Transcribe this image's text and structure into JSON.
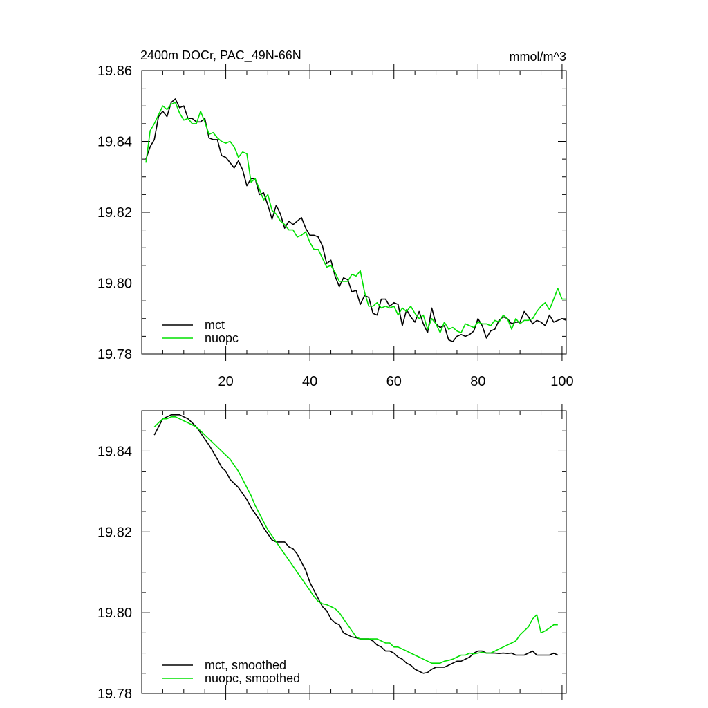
{
  "chart_data": [
    {
      "type": "line",
      "title": "2400m DOCr, PAC_49N-66N",
      "units": "mmol/m^3",
      "xlabel": "",
      "ylabel": "",
      "xlim": [
        0,
        101
      ],
      "ylim": [
        19.78,
        19.86
      ],
      "x_ticks": [
        20,
        40,
        60,
        80,
        100
      ],
      "y_ticks": [
        19.78,
        19.8,
        19.82,
        19.84,
        19.86
      ],
      "x_tick_labels": [
        "20",
        "40",
        "60",
        "80",
        "100"
      ],
      "y_tick_labels": [
        "19.78",
        "19.80",
        "19.82",
        "19.84",
        "19.86"
      ],
      "legend_position": "bottom-left",
      "series": [
        {
          "name": "mct",
          "color": "#000000",
          "x": [
            1,
            2,
            3,
            4,
            5,
            6,
            7,
            8,
            9,
            10,
            11,
            12,
            13,
            14,
            15,
            16,
            17,
            18,
            19,
            20,
            21,
            22,
            23,
            24,
            25,
            26,
            27,
            28,
            29,
            30,
            31,
            32,
            33,
            34,
            35,
            36,
            37,
            38,
            39,
            40,
            41,
            42,
            43,
            44,
            45,
            46,
            47,
            48,
            49,
            50,
            51,
            52,
            53,
            54,
            55,
            56,
            57,
            58,
            59,
            60,
            61,
            62,
            63,
            64,
            65,
            66,
            67,
            68,
            69,
            70,
            71,
            72,
            73,
            74,
            75,
            76,
            77,
            78,
            79,
            80,
            81,
            82,
            83,
            84,
            85,
            86,
            87,
            88,
            89,
            90,
            91,
            92,
            93,
            94,
            95,
            96,
            97,
            98,
            99,
            100,
            101
          ],
          "values": [
            19.835,
            19.8385,
            19.8405,
            19.847,
            19.8485,
            19.847,
            19.851,
            19.852,
            19.8495,
            19.85,
            19.8465,
            19.8465,
            19.8455,
            19.8455,
            19.8465,
            19.841,
            19.8405,
            19.8405,
            19.836,
            19.8355,
            19.834,
            19.8325,
            19.8345,
            19.832,
            19.8275,
            19.8295,
            19.8295,
            19.825,
            19.8255,
            19.822,
            19.818,
            19.822,
            19.8195,
            19.8155,
            19.8175,
            19.8165,
            19.8175,
            19.8185,
            19.8155,
            19.8135,
            19.8135,
            19.813,
            19.8105,
            19.8055,
            19.8065,
            19.802,
            19.799,
            19.8015,
            19.801,
            19.7975,
            19.798,
            19.794,
            19.7965,
            19.796,
            19.7915,
            19.791,
            19.7955,
            19.7955,
            19.7935,
            19.7945,
            19.794,
            19.788,
            19.7925,
            19.7905,
            19.789,
            19.792,
            19.7885,
            19.786,
            19.793,
            19.7885,
            19.7875,
            19.788,
            19.784,
            19.7835,
            19.785,
            19.7855,
            19.785,
            19.7855,
            19.7865,
            19.79,
            19.788,
            19.7845,
            19.7865,
            19.787,
            19.7895,
            19.7905,
            19.79,
            19.7885,
            19.789,
            19.789,
            19.792,
            19.7905,
            19.7885,
            19.7895,
            19.789,
            19.788,
            19.791,
            19.789,
            19.7895,
            19.79,
            19.7895
          ]
        },
        {
          "name": "nuopc",
          "color": "#00e000",
          "x": [
            1,
            2,
            3,
            4,
            5,
            6,
            7,
            8,
            9,
            10,
            11,
            12,
            13,
            14,
            15,
            16,
            17,
            18,
            19,
            20,
            21,
            22,
            23,
            24,
            25,
            26,
            27,
            28,
            29,
            30,
            31,
            32,
            33,
            34,
            35,
            36,
            37,
            38,
            39,
            40,
            41,
            42,
            43,
            44,
            45,
            46,
            47,
            48,
            49,
            50,
            51,
            52,
            53,
            54,
            55,
            56,
            57,
            58,
            59,
            60,
            61,
            62,
            63,
            64,
            65,
            66,
            67,
            68,
            69,
            70,
            71,
            72,
            73,
            74,
            75,
            76,
            77,
            78,
            79,
            80,
            81,
            82,
            83,
            84,
            85,
            86,
            87,
            88,
            89,
            90,
            91,
            92,
            93,
            94,
            95,
            96,
            97,
            98,
            99,
            100,
            101
          ],
          "values": [
            19.834,
            19.843,
            19.845,
            19.8475,
            19.85,
            19.849,
            19.8505,
            19.851,
            19.848,
            19.846,
            19.8465,
            19.845,
            19.845,
            19.8485,
            19.8455,
            19.842,
            19.8425,
            19.841,
            19.84,
            19.8395,
            19.84,
            19.8385,
            19.8355,
            19.837,
            19.8365,
            19.8285,
            19.8295,
            19.8265,
            19.8235,
            19.825,
            19.8205,
            19.8195,
            19.8175,
            19.8165,
            19.815,
            19.815,
            19.813,
            19.8135,
            19.8145,
            19.8115,
            19.8095,
            19.8095,
            19.807,
            19.8045,
            19.805,
            19.803,
            19.8005,
            19.8005,
            19.8005,
            19.8025,
            19.802,
            19.8035,
            19.7975,
            19.7935,
            19.7935,
            19.7945,
            19.793,
            19.7935,
            19.793,
            19.7935,
            19.791,
            19.793,
            19.792,
            19.7935,
            19.7915,
            19.79,
            19.791,
            19.787,
            19.79,
            19.7885,
            19.786,
            19.789,
            19.787,
            19.7875,
            19.7865,
            19.786,
            19.7885,
            19.788,
            19.7875,
            19.789,
            19.7885,
            19.7885,
            19.788,
            19.7895,
            19.789,
            19.791,
            19.79,
            19.787,
            19.79,
            19.7885,
            19.7895,
            19.7895,
            19.79,
            19.792,
            19.7935,
            19.7945,
            19.7925,
            19.7955,
            19.7985,
            19.7955,
            19.7955
          ]
        }
      ]
    },
    {
      "type": "line",
      "title": "",
      "xlabel": "",
      "ylabel": "",
      "xlim": [
        0,
        101
      ],
      "ylim": [
        19.78,
        19.85
      ],
      "x_ticks": [
        20,
        40,
        60,
        80,
        100
      ],
      "y_ticks": [
        19.78,
        19.8,
        19.82,
        19.84
      ],
      "y_tick_labels": [
        "19.78",
        "19.80",
        "19.82",
        "19.84"
      ],
      "legend_position": "bottom-left",
      "series": [
        {
          "name": "mct, smoothed",
          "color": "#000000",
          "x": [
            3,
            4,
            5,
            6,
            7,
            8,
            9,
            10,
            11,
            12,
            13,
            14,
            15,
            16,
            17,
            18,
            19,
            20,
            21,
            22,
            23,
            24,
            25,
            26,
            27,
            28,
            29,
            30,
            31,
            32,
            33,
            34,
            35,
            36,
            37,
            38,
            39,
            40,
            41,
            42,
            43,
            44,
            45,
            46,
            47,
            48,
            49,
            50,
            51,
            52,
            53,
            54,
            55,
            56,
            57,
            58,
            59,
            60,
            61,
            62,
            63,
            64,
            65,
            66,
            67,
            68,
            69,
            70,
            71,
            72,
            73,
            74,
            75,
            76,
            77,
            78,
            79,
            80,
            81,
            82,
            83,
            84,
            85,
            86,
            87,
            88,
            89,
            90,
            91,
            92,
            93,
            94,
            95,
            96,
            97,
            98,
            99
          ],
          "values": [
            19.844,
            19.846,
            19.848,
            19.8485,
            19.849,
            19.849,
            19.849,
            19.8485,
            19.848,
            19.847,
            19.846,
            19.8445,
            19.843,
            19.8415,
            19.8398,
            19.838,
            19.836,
            19.835,
            19.833,
            19.832,
            19.831,
            19.8295,
            19.828,
            19.826,
            19.8245,
            19.823,
            19.821,
            19.8195,
            19.818,
            19.8175,
            19.8175,
            19.8175,
            19.8163,
            19.8158,
            19.8145,
            19.8125,
            19.8105,
            19.8075,
            19.8055,
            19.8035,
            19.8015,
            19.8005,
            19.7985,
            19.7975,
            19.797,
            19.795,
            19.7945,
            19.794,
            19.7938,
            19.7935,
            19.7935,
            19.7935,
            19.793,
            19.792,
            19.7915,
            19.7905,
            19.7905,
            19.79,
            19.789,
            19.7885,
            19.7875,
            19.787,
            19.786,
            19.7855,
            19.785,
            19.7852,
            19.786,
            19.7865,
            19.7865,
            19.7865,
            19.787,
            19.7875,
            19.788,
            19.788,
            19.7885,
            19.789,
            19.79,
            19.7905,
            19.7905,
            19.79,
            19.79,
            19.79,
            19.7899,
            19.79,
            19.7899,
            19.79,
            19.7895,
            19.7895,
            19.7895,
            19.79,
            19.7905,
            19.7895,
            19.7895,
            19.7895,
            19.7895,
            19.79,
            19.7895
          ]
        },
        {
          "name": "nuopc, smoothed",
          "color": "#00e000",
          "x": [
            3,
            4,
            5,
            6,
            7,
            8,
            9,
            10,
            11,
            12,
            13,
            14,
            15,
            16,
            17,
            18,
            19,
            20,
            21,
            22,
            23,
            24,
            25,
            26,
            27,
            28,
            29,
            30,
            31,
            32,
            33,
            34,
            35,
            36,
            37,
            38,
            39,
            40,
            41,
            42,
            43,
            44,
            45,
            46,
            47,
            48,
            49,
            50,
            51,
            52,
            53,
            54,
            55,
            56,
            57,
            58,
            59,
            60,
            61,
            62,
            63,
            64,
            65,
            66,
            67,
            68,
            69,
            70,
            71,
            72,
            73,
            74,
            75,
            76,
            77,
            78,
            79,
            80,
            81,
            82,
            83,
            84,
            85,
            86,
            87,
            88,
            89,
            90,
            91,
            92,
            93,
            94,
            95,
            96,
            97,
            98,
            99
          ],
          "values": [
            19.846,
            19.847,
            19.848,
            19.848,
            19.8485,
            19.8485,
            19.848,
            19.8475,
            19.847,
            19.8465,
            19.846,
            19.845,
            19.844,
            19.843,
            19.842,
            19.841,
            19.84,
            19.839,
            19.838,
            19.8365,
            19.835,
            19.833,
            19.831,
            19.829,
            19.8265,
            19.8245,
            19.8225,
            19.8205,
            19.819,
            19.8175,
            19.816,
            19.8145,
            19.813,
            19.8115,
            19.81,
            19.8085,
            19.807,
            19.8055,
            19.804,
            19.8028,
            19.8022,
            19.802,
            19.8015,
            19.801,
            19.8,
            19.7985,
            19.797,
            19.7955,
            19.794,
            19.7935,
            19.7935,
            19.7935,
            19.7935,
            19.7935,
            19.793,
            19.7925,
            19.7925,
            19.7915,
            19.7915,
            19.791,
            19.7905,
            19.79,
            19.7895,
            19.789,
            19.7885,
            19.788,
            19.7875,
            19.7875,
            19.7875,
            19.788,
            19.7882,
            19.7885,
            19.789,
            19.7895,
            19.7895,
            19.79,
            19.7898,
            19.79,
            19.7902,
            19.79,
            19.79,
            19.7905,
            19.791,
            19.7915,
            19.792,
            19.7925,
            19.793,
            19.7945,
            19.7955,
            19.7965,
            19.7985,
            19.7995,
            19.795,
            19.7955,
            19.7962,
            19.797,
            19.797
          ]
        }
      ]
    }
  ]
}
